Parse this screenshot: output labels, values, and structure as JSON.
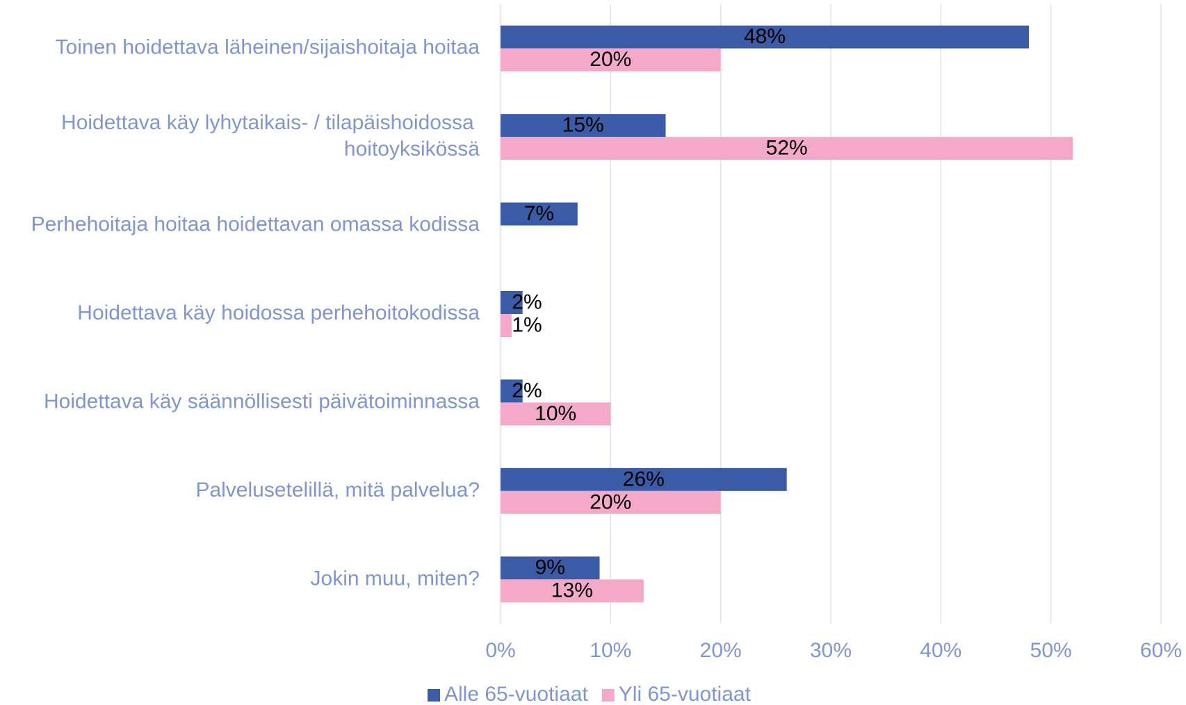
{
  "chart_data": {
    "type": "hbar",
    "categories": [
      "Toinen hoidettava läheinen/sijaishoitaja hoitaa",
      "Hoidettava käy lyhytaikais- / tilapäishoidossa hoitoyksikössä",
      "Perhehoitaja hoitaa hoidettavan omassa kodissa",
      "Hoidettava käy hoidossa perhehoitokodissa",
      "Hoidettava käy säännöllisesti päivätoiminnassa",
      "Palvelusetelillä, mitä palvelua?",
      "Jokin muu, miten?"
    ],
    "series": [
      {
        "name": "Alle 65-vuotiaat",
        "color": "#3c5ba6",
        "values": [
          48,
          15,
          7,
          2,
          2,
          26,
          9
        ],
        "value_labels": [
          "48%",
          "15%",
          "7%",
          "2%",
          "2%",
          "26%",
          "9%"
        ]
      },
      {
        "name": "Yli 65-vuotiaat",
        "color": "#f4a9c9",
        "values": [
          20,
          52,
          null,
          1,
          10,
          20,
          13
        ],
        "value_labels": [
          "20%",
          "52%",
          null,
          "1%",
          "10%",
          "20%",
          "13%"
        ]
      }
    ],
    "xlim": [
      0,
      60
    ],
    "xticks": [
      {
        "value": 0,
        "label": "0%"
      },
      {
        "value": 10,
        "label": "10%"
      },
      {
        "value": 20,
        "label": "20%"
      },
      {
        "value": 30,
        "label": "30%"
      },
      {
        "value": 40,
        "label": "40%"
      },
      {
        "value": 50,
        "label": "50%"
      },
      {
        "value": 60,
        "label": "60%"
      }
    ],
    "grid": true,
    "legend": "bottom"
  }
}
